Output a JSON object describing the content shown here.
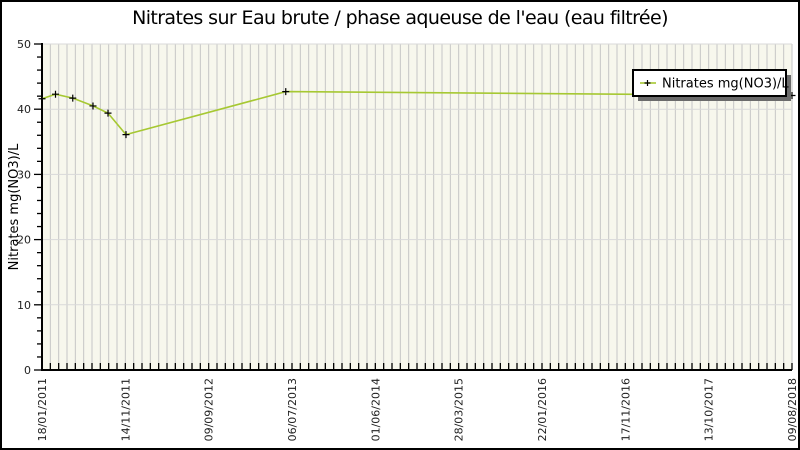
{
  "window": {
    "background": "#ffffff",
    "border_color": "#000000"
  },
  "chart_data": {
    "type": "line",
    "title": "Nitrates sur Eau brute / phase aqueuse de l'eau (eau filtrée)",
    "xlabel": "",
    "ylabel": "Nitrates mg(NO3)/L",
    "ylim": [
      0,
      50
    ],
    "y_major_ticks": [
      0,
      10,
      20,
      30,
      40,
      50
    ],
    "y_minor_step": 2,
    "x_tick_labels": [
      "18/01/2011",
      "14/11/2011",
      "09/09/2012",
      "06/07/2013",
      "01/06/2014",
      "28/03/2015",
      "22/01/2016",
      "17/11/2016",
      "13/10/2017",
      "09/08/2018"
    ],
    "x_minor_per_major": 10,
    "grid": {
      "vertical_minor": true,
      "horizontal_major": true
    },
    "legend": {
      "position": "top-right",
      "entries": [
        {
          "label": "Nitrates mg(NO3)/L",
          "marker": "+",
          "color": "#a6c832"
        }
      ]
    },
    "series": [
      {
        "name": "Nitrates mg(NO3)/L",
        "color": "#a6c832",
        "marker": "+",
        "marker_color": "#000000",
        "points": [
          {
            "x_frac": 0.0,
            "value": 41.6
          },
          {
            "x_frac": 0.018,
            "value": 42.3
          },
          {
            "x_frac": 0.041,
            "value": 41.7
          },
          {
            "x_frac": 0.068,
            "value": 40.5
          },
          {
            "x_frac": 0.088,
            "value": 39.4
          },
          {
            "x_frac": 0.112,
            "value": 36.1
          },
          {
            "x_frac": 0.325,
            "value": 42.7
          },
          {
            "x_frac": 1.0,
            "value": 42.1
          }
        ]
      }
    ],
    "colors": {
      "plot_bg": "#f7f7ed",
      "grid_vertical": "#c6c6c6",
      "grid_horizontal": "#d9d9d9",
      "axis": "#000000",
      "line": "#a6c832",
      "marker": "#000000",
      "legend_bg": "#ffffff",
      "legend_border": "#000000",
      "legend_shadow": "#6b6b6b",
      "text": "#1f1f1f"
    }
  }
}
